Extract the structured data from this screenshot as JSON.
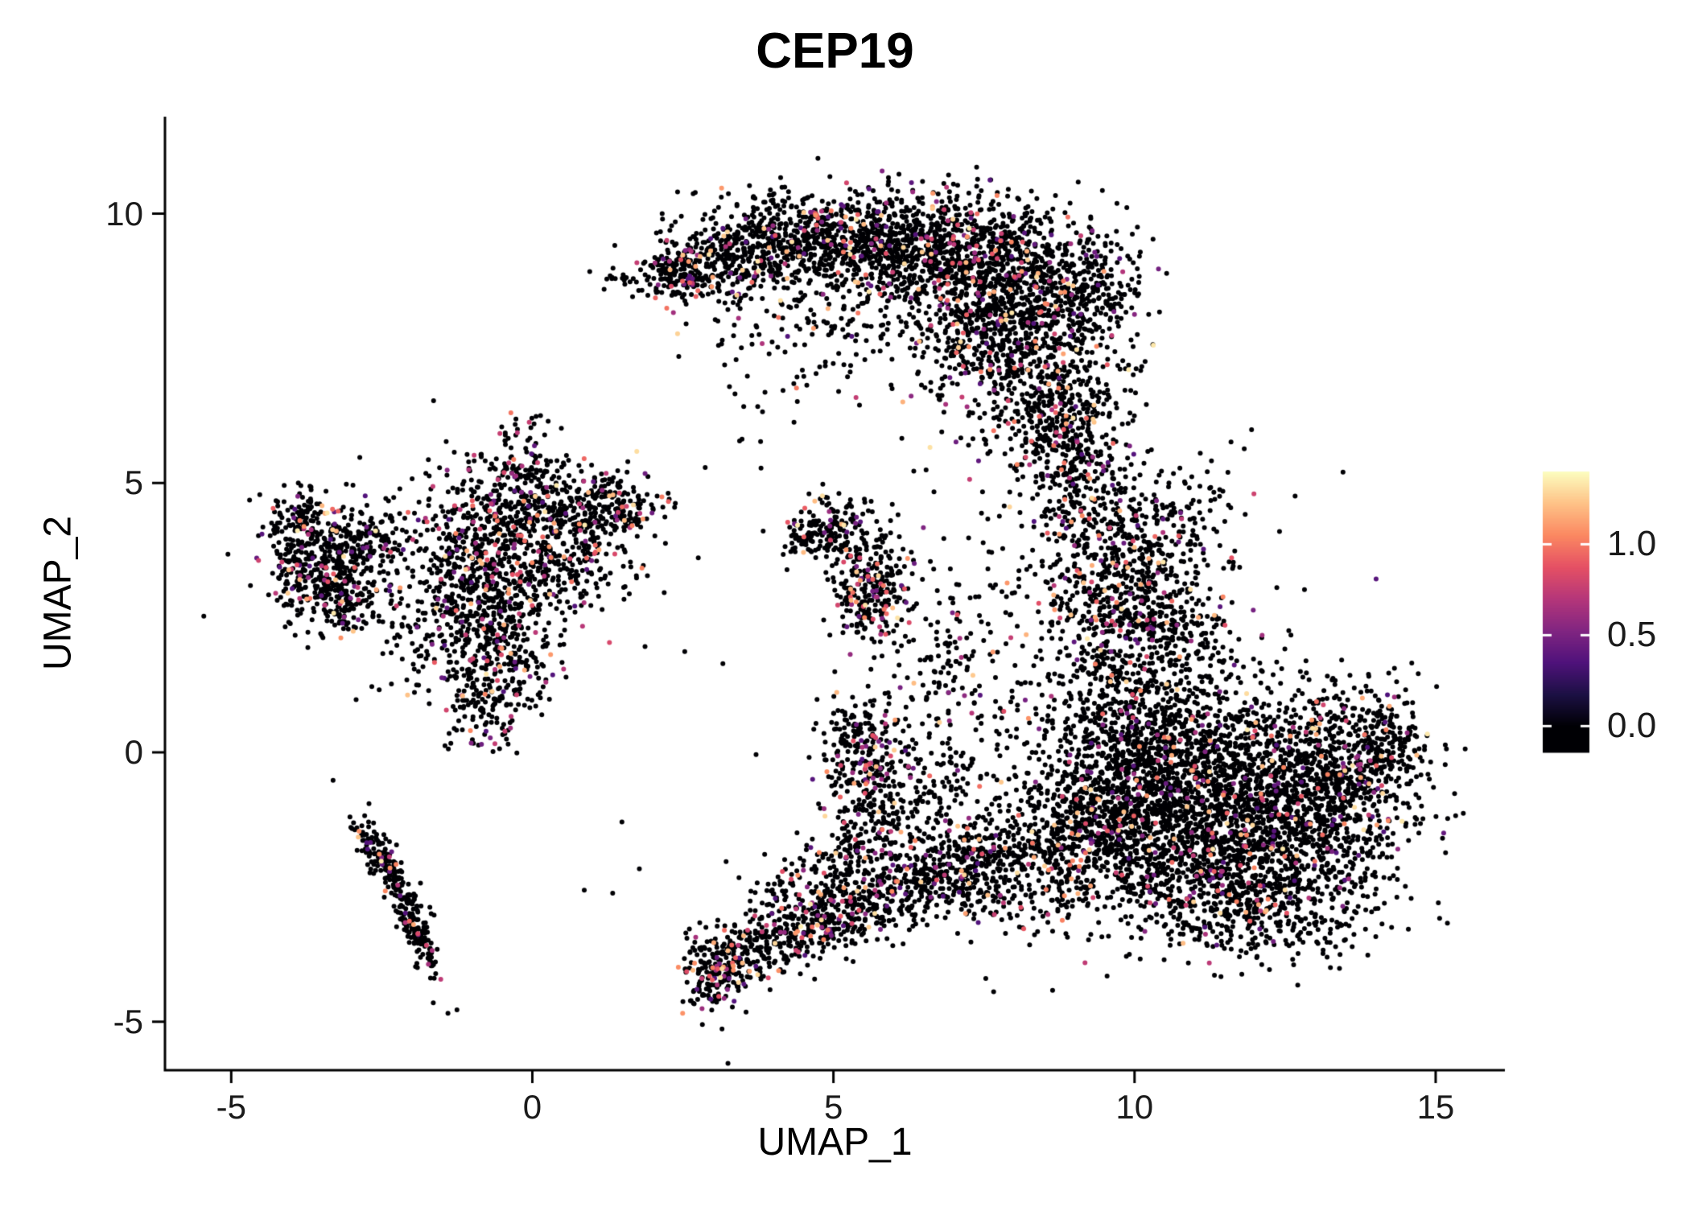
{
  "chart_data": {
    "type": "scatter",
    "title": "CEP19",
    "xlabel": "UMAP_1",
    "ylabel": "UMAP_2",
    "xlim": [
      -6.1,
      16.15
    ],
    "ylim": [
      -5.9,
      11.8
    ],
    "x_ticks": [
      -5,
      0,
      5,
      10,
      15
    ],
    "x_tick_labels": [
      "-5",
      "0",
      "5",
      "10",
      "15"
    ],
    "y_ticks": [
      -5,
      0,
      5,
      10
    ],
    "y_tick_labels": [
      "-5",
      "0",
      "5",
      "10"
    ],
    "grid": false,
    "legend_position": "right",
    "point_radius": 3,
    "seed": 42,
    "axis_color": "#000000",
    "colormap": {
      "name": "magma",
      "stops": [
        {
          "t": 0.0,
          "c": "#000004"
        },
        {
          "t": 0.125,
          "c": "#1c1044"
        },
        {
          "t": 0.25,
          "c": "#4f127b"
        },
        {
          "t": 0.375,
          "c": "#812581"
        },
        {
          "t": 0.5,
          "c": "#b5367a"
        },
        {
          "t": 0.625,
          "c": "#e55064"
        },
        {
          "t": 0.75,
          "c": "#fb8861"
        },
        {
          "t": 0.875,
          "c": "#fec287"
        },
        {
          "t": 1.0,
          "c": "#fcfdbf"
        }
      ]
    },
    "colorbar": {
      "tick_labels": [
        "1.0",
        "0.5",
        "0.0"
      ],
      "tick_values": [
        1.0,
        0.5,
        0.0
      ],
      "value_max": 1.4,
      "bar_min": -0.14,
      "bar_max": 1.4
    },
    "clusters": [
      {
        "cx": 2.4,
        "cy": 8.85,
        "sx": 0.28,
        "sy": 0.25,
        "n": 120,
        "frac": 0.1
      },
      {
        "cx": 3.0,
        "cy": 9.15,
        "sx": 0.6,
        "sy": 0.45,
        "n": 300,
        "frac": 0.12
      },
      {
        "cx": 4.4,
        "cy": 9.5,
        "sx": 0.7,
        "sy": 0.45,
        "n": 380,
        "frac": 0.1
      },
      {
        "cx": 5.6,
        "cy": 9.5,
        "sx": 0.8,
        "sy": 0.5,
        "n": 450,
        "frac": 0.1
      },
      {
        "cx": 6.9,
        "cy": 9.3,
        "sx": 0.9,
        "sy": 0.55,
        "n": 650,
        "frac": 0.1
      },
      {
        "cx": 8.1,
        "cy": 8.7,
        "sx": 0.75,
        "sy": 0.65,
        "n": 600,
        "frac": 0.1
      },
      {
        "cx": 9.3,
        "cy": 8.6,
        "sx": 0.4,
        "sy": 0.5,
        "n": 160,
        "frac": 0.08
      },
      {
        "cx": 8.0,
        "cy": 7.4,
        "sx": 0.85,
        "sy": 0.75,
        "n": 550,
        "frac": 0.1
      },
      {
        "cx": 8.8,
        "cy": 6.3,
        "sx": 0.55,
        "sy": 0.7,
        "n": 320,
        "frac": 0.1
      },
      {
        "cx": 9.1,
        "cy": 5.1,
        "sx": 0.45,
        "sy": 0.75,
        "n": 200,
        "frac": 0.1
      },
      {
        "cx": 5.6,
        "cy": 8.3,
        "sx": 1.2,
        "sy": 0.6,
        "n": 160,
        "frac": 0.08
      },
      {
        "cx": 4.2,
        "cy": 7.4,
        "sx": 0.9,
        "sy": 0.8,
        "n": 70,
        "frac": 0.06
      },
      {
        "cx": 1.45,
        "cy": 8.75,
        "sx": 0.2,
        "sy": 0.15,
        "n": 16,
        "frac": 0.05
      },
      {
        "cx": 11.2,
        "cy": -0.3,
        "sx": 1.1,
        "sy": 0.9,
        "n": 1150,
        "frac": 0.08
      },
      {
        "cx": 12.6,
        "cy": -1.4,
        "sx": 1.0,
        "sy": 0.9,
        "n": 950,
        "frac": 0.08
      },
      {
        "cx": 10.6,
        "cy": -1.7,
        "sx": 0.9,
        "sy": 0.8,
        "n": 700,
        "frac": 0.08
      },
      {
        "cx": 13.5,
        "cy": -0.2,
        "sx": 0.65,
        "sy": 0.7,
        "n": 380,
        "frac": 0.08
      },
      {
        "cx": 11.9,
        "cy": -2.8,
        "sx": 1.0,
        "sy": 0.55,
        "n": 420,
        "frac": 0.08
      },
      {
        "cx": 10.1,
        "cy": 0.7,
        "sx": 0.7,
        "sy": 0.6,
        "n": 320,
        "frac": 0.08
      },
      {
        "cx": 14.15,
        "cy": 0.2,
        "sx": 0.3,
        "sy": 0.5,
        "n": 140,
        "frac": 0.08
      },
      {
        "cx": 9.7,
        "cy": -0.7,
        "sx": 0.5,
        "sy": 0.8,
        "n": 260,
        "frac": 0.08
      },
      {
        "cx": 9.9,
        "cy": 3.4,
        "sx": 0.65,
        "sy": 0.75,
        "n": 430,
        "frac": 0.12
      },
      {
        "cx": 10.6,
        "cy": 2.3,
        "sx": 0.55,
        "sy": 0.55,
        "n": 200,
        "frac": 0.1
      },
      {
        "cx": 10.8,
        "cy": 4.3,
        "sx": 0.75,
        "sy": 0.65,
        "n": 110,
        "frac": 0.08
      },
      {
        "cx": 9.4,
        "cy": 2.1,
        "sx": 0.5,
        "sy": 0.65,
        "n": 170,
        "frac": 0.1
      },
      {
        "cx": 8.6,
        "cy": 3.8,
        "sx": 0.8,
        "sy": 0.9,
        "n": 90,
        "frac": 0.08
      },
      {
        "cx": -0.4,
        "cy": 4.4,
        "sx": 0.8,
        "sy": 0.55,
        "n": 430,
        "frac": 0.14
      },
      {
        "cx": -0.9,
        "cy": 3.2,
        "sx": 0.6,
        "sy": 0.6,
        "n": 330,
        "frac": 0.14
      },
      {
        "cx": -0.5,
        "cy": 2.2,
        "sx": 0.5,
        "sy": 0.65,
        "n": 240,
        "frac": 0.14
      },
      {
        "cx": 0.4,
        "cy": 3.4,
        "sx": 0.6,
        "sy": 0.5,
        "n": 200,
        "frac": 0.12
      },
      {
        "cx": 0.9,
        "cy": 4.5,
        "sx": 0.5,
        "sy": 0.4,
        "n": 190,
        "frac": 0.12
      },
      {
        "cx": -0.7,
        "cy": 1.1,
        "sx": 0.4,
        "sy": 0.5,
        "n": 170,
        "frac": 0.15
      },
      {
        "cx": -0.2,
        "cy": 5.4,
        "sx": 0.3,
        "sy": 0.45,
        "n": 90,
        "frac": 0.1
      },
      {
        "cx": 1.5,
        "cy": 4.5,
        "sx": 0.4,
        "sy": 0.3,
        "n": 100,
        "frac": 0.1
      },
      {
        "cx": -1.6,
        "cy": 2.3,
        "sx": 0.7,
        "sy": 0.8,
        "n": 110,
        "frac": 0.1
      },
      {
        "cx": -3.5,
        "cy": 3.3,
        "sx": 0.45,
        "sy": 0.45,
        "n": 280,
        "frac": 0.12
      },
      {
        "cx": -3.8,
        "cy": 4.3,
        "sx": 0.3,
        "sy": 0.3,
        "n": 130,
        "frac": 0.12
      },
      {
        "cx": -2.9,
        "cy": 3.9,
        "sx": 0.4,
        "sy": 0.35,
        "n": 170,
        "frac": 0.1
      },
      {
        "cx": -3.1,
        "cy": 2.85,
        "sx": 0.35,
        "sy": 0.3,
        "n": 110,
        "frac": 0.12
      },
      {
        "cx": 5.6,
        "cy": 3.15,
        "sx": 0.3,
        "sy": 0.5,
        "n": 240,
        "frac": 0.25
      },
      {
        "cx": 5.0,
        "cy": 4.25,
        "sx": 0.35,
        "sy": 0.3,
        "n": 120,
        "frac": 0.12
      },
      {
        "cx": 4.6,
        "cy": 4.0,
        "sx": 0.22,
        "sy": 0.22,
        "n": 55,
        "frac": 0.1
      },
      {
        "cx": -2.5,
        "cy": -2.0,
        "sx": 0.5,
        "sy": 0.13,
        "rot": -60,
        "n": 140,
        "frac": 0.1
      },
      {
        "cx": -1.95,
        "cy": -3.2,
        "sx": 0.55,
        "sy": 0.12,
        "rot": -72,
        "n": 160,
        "frac": 0.1
      },
      {
        "cx": 3.05,
        "cy": -4.05,
        "sx": 0.25,
        "sy": 0.35,
        "n": 200,
        "frac": 0.18
      },
      {
        "cx": 3.9,
        "cy": -3.6,
        "sx": 0.5,
        "sy": 0.28,
        "rot": 20,
        "n": 170,
        "frac": 0.15
      },
      {
        "cx": 4.9,
        "cy": -3.1,
        "sx": 0.6,
        "sy": 0.3,
        "rot": 25,
        "n": 190,
        "frac": 0.15
      },
      {
        "cx": 6.0,
        "cy": -2.6,
        "sx": 0.6,
        "sy": 0.35,
        "rot": 25,
        "n": 220,
        "frac": 0.12
      },
      {
        "cx": 7.1,
        "cy": -2.2,
        "sx": 0.6,
        "sy": 0.4,
        "rot": 20,
        "n": 250,
        "frac": 0.1
      },
      {
        "cx": 8.3,
        "cy": -2.2,
        "sx": 0.7,
        "sy": 0.6,
        "n": 300,
        "frac": 0.08
      },
      {
        "cx": 9.0,
        "cy": -1.4,
        "sx": 0.6,
        "sy": 0.7,
        "n": 270,
        "frac": 0.08
      },
      {
        "cx": 5.5,
        "cy": 0.0,
        "sx": 0.35,
        "sy": 0.6,
        "n": 250,
        "frac": 0.2
      },
      {
        "cx": 6.1,
        "cy": -1.1,
        "sx": 0.5,
        "sy": 0.5,
        "n": 150,
        "frac": 0.12
      },
      {
        "cx": 6.8,
        "cy": -0.6,
        "sx": 0.7,
        "sy": 0.6,
        "n": 90,
        "frac": 0.08
      },
      {
        "cx": 6.9,
        "cy": 1.6,
        "sx": 0.35,
        "sy": 0.8,
        "n": 100,
        "frac": 0.1
      },
      {
        "cx": 7.9,
        "cy": 0.6,
        "sx": 0.9,
        "sy": 0.9,
        "n": 110,
        "frac": 0.08
      },
      {
        "cx": 4.4,
        "cy": -2.7,
        "sx": 0.5,
        "sy": 0.4,
        "rot": 30,
        "n": 120,
        "frac": 0.15
      },
      {
        "cx": 5.3,
        "cy": -1.8,
        "sx": 0.5,
        "sy": 0.4,
        "rot": 30,
        "n": 130,
        "frac": 0.12
      },
      {
        "cx": 6.0,
        "cy": 2.8,
        "sx": 0.5,
        "sy": 0.5,
        "n": 40,
        "frac": 0.08
      },
      {
        "cx": 5.5,
        "cy": 2.0,
        "sx": 4.5,
        "sy": 3.5,
        "n": 60,
        "frac": 0.05
      }
    ]
  }
}
